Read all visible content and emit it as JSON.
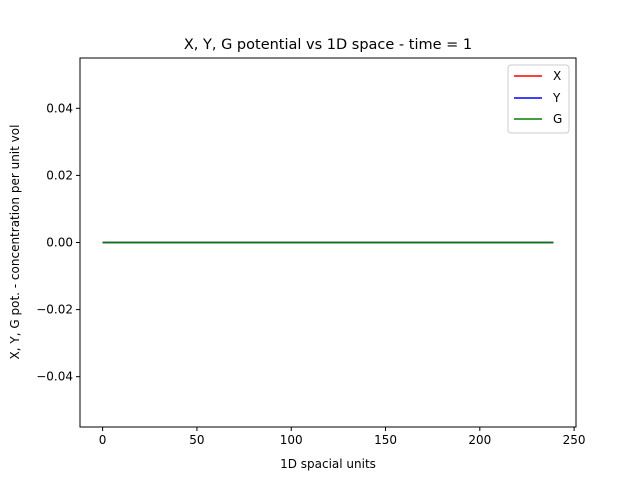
{
  "chart_data": {
    "type": "line",
    "title": "X, Y, G potential vs 1D space - time = 1",
    "xlabel": "1D spacial units",
    "ylabel": "X, Y, G pot. - concentration per unit vol",
    "xlim": [
      -12,
      251
    ],
    "ylim": [
      -0.055,
      0.055
    ],
    "x_ticks": [
      0,
      50,
      100,
      150,
      200,
      250
    ],
    "x_tick_labels": [
      "0",
      "50",
      "100",
      "150",
      "200",
      "250"
    ],
    "y_ticks": [
      0.04,
      0.02,
      0.0,
      -0.02,
      -0.04
    ],
    "y_tick_labels": [
      "0.04",
      "0.02",
      "0.00",
      "−0.02",
      "−0.04"
    ],
    "grid": false,
    "legend_position": "top-right",
    "series": [
      {
        "name": "X",
        "color": "#ff0000",
        "x": [
          0,
          239
        ],
        "y": [
          0,
          0
        ]
      },
      {
        "name": "Y",
        "color": "#0000ff",
        "x": [
          0,
          239
        ],
        "y": [
          0,
          0
        ]
      },
      {
        "name": "G",
        "color": "#008000",
        "x": [
          0,
          239
        ],
        "y": [
          0,
          0
        ]
      }
    ]
  }
}
